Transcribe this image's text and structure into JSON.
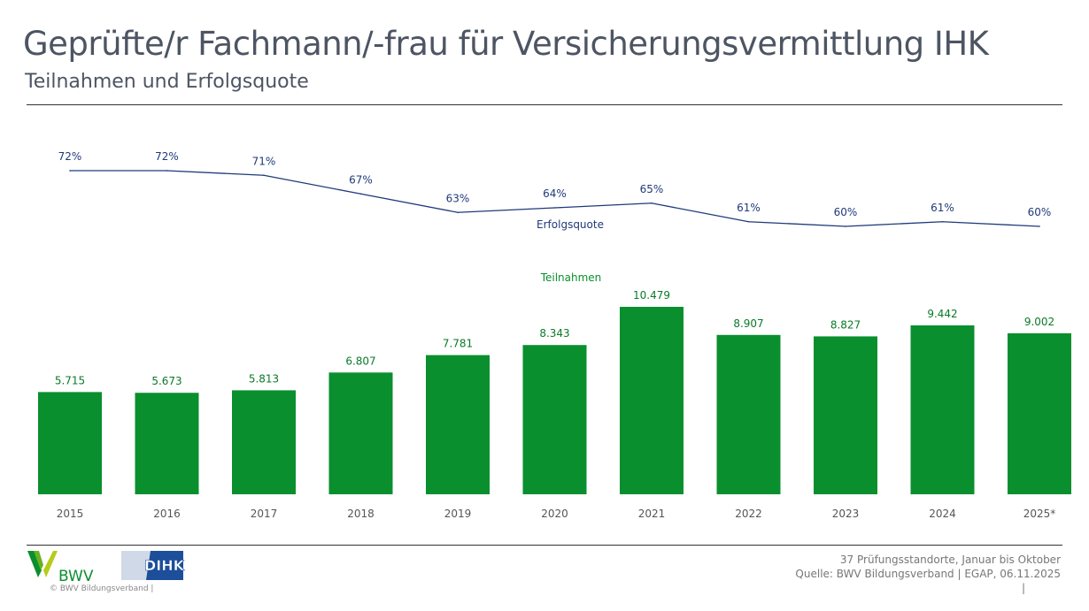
{
  "header": {
    "title": "Geprüfte/r Fachmann/-frau für Versicherungsvermittlung IHK",
    "subtitle": "Teilnahmen und Erfolgsquote"
  },
  "chart_data": {
    "type": "bar+line",
    "categories": [
      "2015",
      "2016",
      "2017",
      "2018",
      "2019",
      "2020",
      "2021",
      "2022",
      "2023",
      "2024",
      "2025*"
    ],
    "series": [
      {
        "name": "Teilnahmen",
        "type": "bar",
        "color": "#0a8f2e",
        "values": [
          5715,
          5673,
          5813,
          6807,
          7781,
          8343,
          10479,
          8907,
          8827,
          9442,
          9002
        ],
        "labels": [
          "5.715",
          "5.673",
          "5.813",
          "6.807",
          "7.781",
          "8.343",
          "10.479",
          "8.907",
          "8.827",
          "9.442",
          "9.002"
        ]
      },
      {
        "name": "Erfolgsquote",
        "type": "line",
        "color": "#1f3a7a",
        "values": [
          72,
          72,
          71,
          67,
          63,
          64,
          65,
          61,
          60,
          61,
          60
        ],
        "labels": [
          "72%",
          "72%",
          "71%",
          "67%",
          "63%",
          "64%",
          "65%",
          "61%",
          "60%",
          "61%",
          "60%"
        ]
      }
    ],
    "grid": false
  },
  "footer": {
    "logo_bwv": "BWV",
    "logo_dihk": "DIHK",
    "copyright": "©  BWV Bildungsverband  |",
    "note": "37 Prüfungsstandorte, Januar bis Oktober",
    "source": "Quelle: BWV Bildungsverband | EGAP, 06.11.2025",
    "pipe": "|"
  }
}
